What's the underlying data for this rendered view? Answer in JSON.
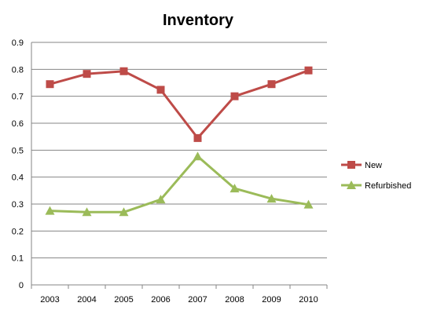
{
  "chart_data": {
    "type": "line",
    "title": "Inventory",
    "xlabel": "",
    "ylabel": "",
    "categories": [
      "2003",
      "2004",
      "2005",
      "2006",
      "2007",
      "2008",
      "2009",
      "2010"
    ],
    "ylim": [
      0,
      0.9
    ],
    "yticks": [
      "0",
      "0.1",
      "0.2",
      "0.3",
      "0.4",
      "0.5",
      "0.6",
      "0.7",
      "0.8",
      "0.9"
    ],
    "grid": true,
    "legend_position": "right",
    "series": [
      {
        "name": "New",
        "values": [
          0.745,
          0.783,
          0.793,
          0.724,
          0.545,
          0.7,
          0.745,
          0.796
        ],
        "color": "#BE4B48",
        "marker": "square"
      },
      {
        "name": "Refurbished",
        "values": [
          0.275,
          0.27,
          0.27,
          0.317,
          0.477,
          0.358,
          0.32,
          0.298
        ],
        "color": "#9BBB59",
        "marker": "triangle"
      }
    ]
  }
}
